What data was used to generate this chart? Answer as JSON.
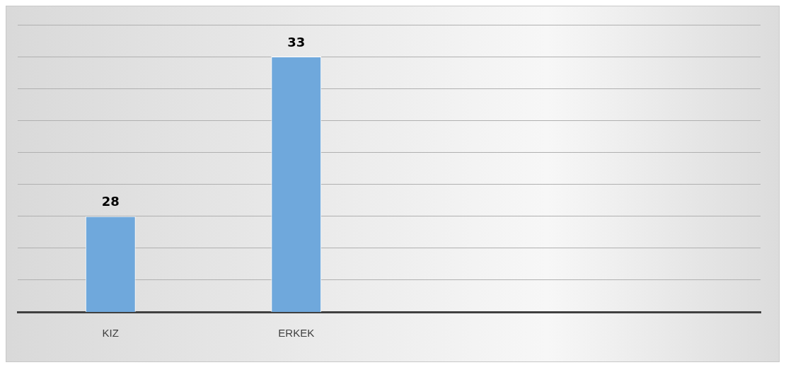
{
  "chart_data": {
    "type": "bar",
    "categories": [
      "KIZ",
      "ERKEK",
      null,
      null
    ],
    "values": [
      28,
      33,
      null,
      null
    ],
    "color": "#6fa8dc",
    "ylim": [
      25,
      34
    ],
    "yticks": [
      {
        "value": 25,
        "label": null
      },
      {
        "value": 26,
        "label": null
      },
      {
        "value": 27,
        "label": null
      },
      {
        "value": 28,
        "label": null
      },
      {
        "value": 29,
        "label": null
      },
      {
        "value": 30,
        "label": null
      },
      {
        "value": 31,
        "label": null
      },
      {
        "value": 32,
        "label": null
      },
      {
        "value": 33,
        "label": null
      },
      {
        "value": 34,
        "label": null
      }
    ],
    "grid": "y",
    "data_labels": true,
    "tick_labels": "x"
  }
}
